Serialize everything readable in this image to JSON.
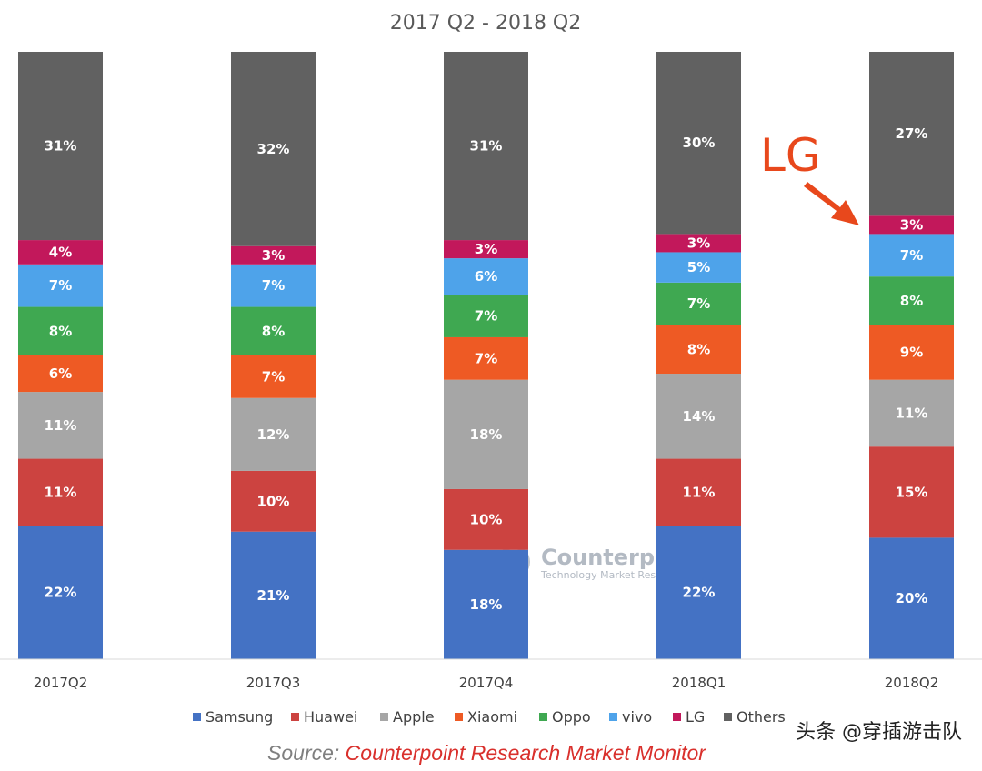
{
  "chart_data": {
    "type": "bar",
    "stacked": true,
    "title": "2017 Q2 - 2018 Q2",
    "categories": [
      "2017Q2",
      "2017Q3",
      "2017Q4",
      "2018Q1",
      "2018Q2"
    ],
    "ylim": [
      0,
      100
    ],
    "grid": false,
    "legend_position": "bottom",
    "series": [
      {
        "name": "Samsung",
        "color": "#4472c4",
        "values": [
          22,
          21,
          18,
          22,
          20
        ]
      },
      {
        "name": "Huawei",
        "color": "#cc4340",
        "values": [
          11,
          10,
          10,
          11,
          15
        ]
      },
      {
        "name": "Apple",
        "color": "#a6a6a6",
        "values": [
          11,
          12,
          18,
          14,
          11
        ]
      },
      {
        "name": "Xiaomi",
        "color": "#ee5a24",
        "values": [
          6,
          7,
          7,
          8,
          9
        ]
      },
      {
        "name": "Oppo",
        "color": "#3fa851",
        "values": [
          8,
          8,
          7,
          7,
          8
        ]
      },
      {
        "name": "vivo",
        "color": "#4ea3ea",
        "values": [
          7,
          7,
          6,
          5,
          7
        ]
      },
      {
        "name": "LG",
        "color": "#c2185b",
        "values": [
          4,
          3,
          3,
          3,
          3
        ]
      },
      {
        "name": "Others",
        "color": "#616161",
        "values": [
          31,
          32,
          31,
          30,
          27
        ]
      }
    ],
    "annotation": {
      "text": "LG",
      "target_category": "2018Q2",
      "target_series": "LG",
      "color": "#e8481c"
    }
  },
  "watermark": {
    "main": "Counterpoint",
    "sub": "Technology Market Research"
  },
  "source": {
    "prefix": "Source: ",
    "text": "Counterpoint Research Market Monitor",
    "prefix_color": "#7f7f7f",
    "text_color": "#d9302c"
  },
  "social_tag": "头条 @穿插游击队"
}
